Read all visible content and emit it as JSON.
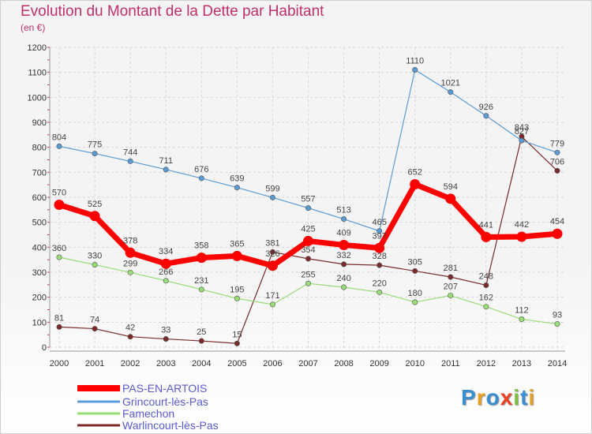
{
  "header": {
    "title": "Evolution du Montant de la Dette par Habitant",
    "subtitle": "(en €)"
  },
  "logo": {
    "text": "Proxiti",
    "colors": [
      "#3a8fd0",
      "#e8a020",
      "#3a8fd0",
      "#e84020",
      "#80c040",
      "#3a8fd0",
      "#e8a020"
    ]
  },
  "chart_data": {
    "type": "line",
    "title": "Evolution du Montant de la Dette par Habitant",
    "subtitle": "(en €)",
    "xlabel": "",
    "ylabel": "",
    "ylim": [
      0,
      1200
    ],
    "yticks": [
      "0",
      "100",
      "200",
      "300",
      "400",
      "500",
      "600",
      "700",
      "800",
      "900",
      "1000",
      "1100",
      "1200"
    ],
    "yticks_values": [
      0,
      100,
      200,
      300,
      400,
      500,
      600,
      700,
      800,
      900,
      1000,
      1100,
      1200
    ],
    "categories": [
      "2000",
      "2001",
      "2002",
      "2003",
      "2004",
      "2005",
      "2006",
      "2007",
      "2008",
      "2009",
      "2010",
      "2011",
      "2012",
      "2013",
      "2014"
    ],
    "grid": true,
    "legend_position": "bottom-left",
    "series": [
      {
        "name": "PAS-EN-ARTOIS",
        "color": "#ff0000",
        "values": [
          570,
          525,
          378,
          334,
          358,
          365,
          326,
          425,
          409,
          397,
          652,
          594,
          441,
          442,
          454
        ],
        "labels": [
          "570",
          "525",
          "378",
          "334",
          "358",
          "365",
          "326",
          "425",
          "409",
          "397",
          "652",
          "594",
          "441",
          "442",
          "454"
        ]
      },
      {
        "name": "Grincourt-lès-Pas",
        "color": "#5b9bd5",
        "values": [
          804,
          775,
          744,
          711,
          676,
          639,
          599,
          557,
          513,
          465,
          1110,
          1021,
          926,
          827,
          779
        ],
        "labels": [
          "804",
          "775",
          "744",
          "711",
          "676",
          "639",
          "599",
          "557",
          "513",
          "465",
          "1110",
          "1021",
          "926",
          "827",
          "779"
        ]
      },
      {
        "name": "Famechon",
        "color": "#99dd77",
        "values": [
          360,
          330,
          299,
          266,
          231,
          195,
          171,
          255,
          240,
          220,
          180,
          207,
          162,
          112,
          93
        ],
        "labels": [
          "360",
          "330",
          "299",
          "266",
          "231",
          "195",
          "171",
          "255",
          "240",
          "220",
          "180",
          "207",
          "162",
          "112",
          "93"
        ]
      },
      {
        "name": "Warlincourt-lès-Pas",
        "color": "#7a2a2a",
        "values": [
          81,
          74,
          42,
          33,
          25,
          15,
          381,
          354,
          332,
          328,
          305,
          281,
          248,
          843,
          706
        ],
        "labels": [
          "81",
          "74",
          "42",
          "33",
          "25",
          "15",
          "381",
          "354",
          "332",
          "328",
          "305",
          "281",
          "248",
          "843",
          "706"
        ]
      }
    ]
  }
}
